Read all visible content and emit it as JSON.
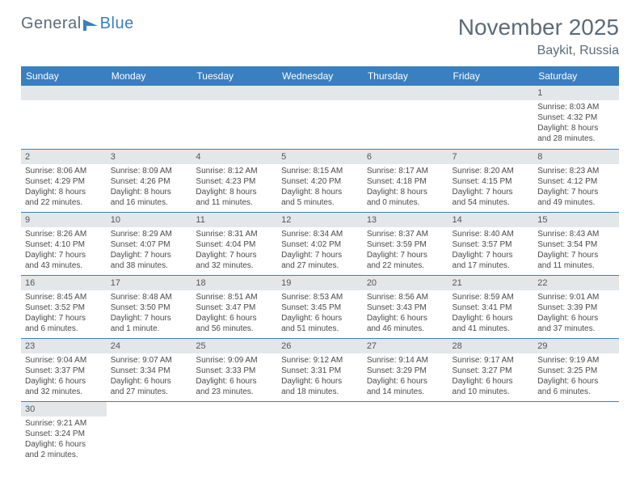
{
  "logo": {
    "text1": "General",
    "text2": "Blue"
  },
  "title": "November 2025",
  "location": "Baykit, Russia",
  "colors": {
    "header_bg": "#3a7fbf",
    "header_text": "#ffffff",
    "daynum_bg": "#e4e7ea",
    "border": "#3a7fbf",
    "title_color": "#5d6b78",
    "body_text": "#4a4a4a"
  },
  "fonts": {
    "title_size": 28,
    "location_size": 16,
    "dayhead_size": 12,
    "body_size": 10
  },
  "day_headers": [
    "Sunday",
    "Monday",
    "Tuesday",
    "Wednesday",
    "Thursday",
    "Friday",
    "Saturday"
  ],
  "labels": {
    "sunrise": "Sunrise:",
    "sunset": "Sunset:",
    "daylight": "Daylight:"
  },
  "weeks": [
    [
      null,
      null,
      null,
      null,
      null,
      null,
      {
        "n": "1",
        "sunrise": "8:03 AM",
        "sunset": "4:32 PM",
        "day_l1": "8 hours",
        "day_l2": "and 28 minutes."
      }
    ],
    [
      {
        "n": "2",
        "sunrise": "8:06 AM",
        "sunset": "4:29 PM",
        "day_l1": "8 hours",
        "day_l2": "and 22 minutes."
      },
      {
        "n": "3",
        "sunrise": "8:09 AM",
        "sunset": "4:26 PM",
        "day_l1": "8 hours",
        "day_l2": "and 16 minutes."
      },
      {
        "n": "4",
        "sunrise": "8:12 AM",
        "sunset": "4:23 PM",
        "day_l1": "8 hours",
        "day_l2": "and 11 minutes."
      },
      {
        "n": "5",
        "sunrise": "8:15 AM",
        "sunset": "4:20 PM",
        "day_l1": "8 hours",
        "day_l2": "and 5 minutes."
      },
      {
        "n": "6",
        "sunrise": "8:17 AM",
        "sunset": "4:18 PM",
        "day_l1": "8 hours",
        "day_l2": "and 0 minutes."
      },
      {
        "n": "7",
        "sunrise": "8:20 AM",
        "sunset": "4:15 PM",
        "day_l1": "7 hours",
        "day_l2": "and 54 minutes."
      },
      {
        "n": "8",
        "sunrise": "8:23 AM",
        "sunset": "4:12 PM",
        "day_l1": "7 hours",
        "day_l2": "and 49 minutes."
      }
    ],
    [
      {
        "n": "9",
        "sunrise": "8:26 AM",
        "sunset": "4:10 PM",
        "day_l1": "7 hours",
        "day_l2": "and 43 minutes."
      },
      {
        "n": "10",
        "sunrise": "8:29 AM",
        "sunset": "4:07 PM",
        "day_l1": "7 hours",
        "day_l2": "and 38 minutes."
      },
      {
        "n": "11",
        "sunrise": "8:31 AM",
        "sunset": "4:04 PM",
        "day_l1": "7 hours",
        "day_l2": "and 32 minutes."
      },
      {
        "n": "12",
        "sunrise": "8:34 AM",
        "sunset": "4:02 PM",
        "day_l1": "7 hours",
        "day_l2": "and 27 minutes."
      },
      {
        "n": "13",
        "sunrise": "8:37 AM",
        "sunset": "3:59 PM",
        "day_l1": "7 hours",
        "day_l2": "and 22 minutes."
      },
      {
        "n": "14",
        "sunrise": "8:40 AM",
        "sunset": "3:57 PM",
        "day_l1": "7 hours",
        "day_l2": "and 17 minutes."
      },
      {
        "n": "15",
        "sunrise": "8:43 AM",
        "sunset": "3:54 PM",
        "day_l1": "7 hours",
        "day_l2": "and 11 minutes."
      }
    ],
    [
      {
        "n": "16",
        "sunrise": "8:45 AM",
        "sunset": "3:52 PM",
        "day_l1": "7 hours",
        "day_l2": "and 6 minutes."
      },
      {
        "n": "17",
        "sunrise": "8:48 AM",
        "sunset": "3:50 PM",
        "day_l1": "7 hours",
        "day_l2": "and 1 minute."
      },
      {
        "n": "18",
        "sunrise": "8:51 AM",
        "sunset": "3:47 PM",
        "day_l1": "6 hours",
        "day_l2": "and 56 minutes."
      },
      {
        "n": "19",
        "sunrise": "8:53 AM",
        "sunset": "3:45 PM",
        "day_l1": "6 hours",
        "day_l2": "and 51 minutes."
      },
      {
        "n": "20",
        "sunrise": "8:56 AM",
        "sunset": "3:43 PM",
        "day_l1": "6 hours",
        "day_l2": "and 46 minutes."
      },
      {
        "n": "21",
        "sunrise": "8:59 AM",
        "sunset": "3:41 PM",
        "day_l1": "6 hours",
        "day_l2": "and 41 minutes."
      },
      {
        "n": "22",
        "sunrise": "9:01 AM",
        "sunset": "3:39 PM",
        "day_l1": "6 hours",
        "day_l2": "and 37 minutes."
      }
    ],
    [
      {
        "n": "23",
        "sunrise": "9:04 AM",
        "sunset": "3:37 PM",
        "day_l1": "6 hours",
        "day_l2": "and 32 minutes."
      },
      {
        "n": "24",
        "sunrise": "9:07 AM",
        "sunset": "3:34 PM",
        "day_l1": "6 hours",
        "day_l2": "and 27 minutes."
      },
      {
        "n": "25",
        "sunrise": "9:09 AM",
        "sunset": "3:33 PM",
        "day_l1": "6 hours",
        "day_l2": "and 23 minutes."
      },
      {
        "n": "26",
        "sunrise": "9:12 AM",
        "sunset": "3:31 PM",
        "day_l1": "6 hours",
        "day_l2": "and 18 minutes."
      },
      {
        "n": "27",
        "sunrise": "9:14 AM",
        "sunset": "3:29 PM",
        "day_l1": "6 hours",
        "day_l2": "and 14 minutes."
      },
      {
        "n": "28",
        "sunrise": "9:17 AM",
        "sunset": "3:27 PM",
        "day_l1": "6 hours",
        "day_l2": "and 10 minutes."
      },
      {
        "n": "29",
        "sunrise": "9:19 AM",
        "sunset": "3:25 PM",
        "day_l1": "6 hours",
        "day_l2": "and 6 minutes."
      }
    ],
    [
      {
        "n": "30",
        "sunrise": "9:21 AM",
        "sunset": "3:24 PM",
        "day_l1": "6 hours",
        "day_l2": "and 2 minutes."
      },
      null,
      null,
      null,
      null,
      null,
      null
    ]
  ]
}
